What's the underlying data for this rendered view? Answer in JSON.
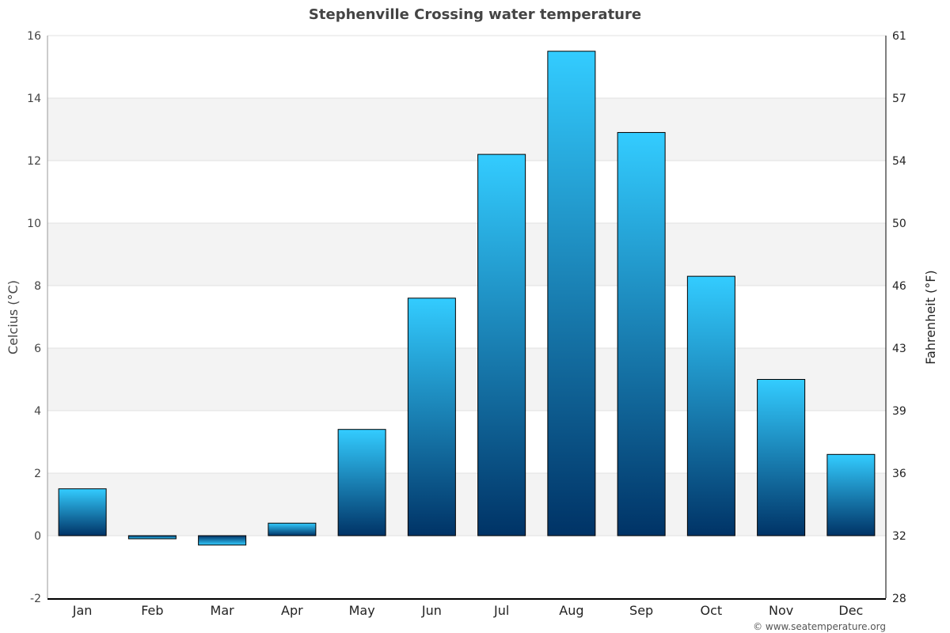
{
  "chart_data": {
    "type": "bar",
    "title": "Stephenville Crossing water temperature",
    "ylabel": "Celcius (°C)",
    "ylabel_right": "Fahrenheit (°F)",
    "xlabel": "",
    "categories": [
      "Jan",
      "Feb",
      "Mar",
      "Apr",
      "May",
      "Jun",
      "Jul",
      "Aug",
      "Sep",
      "Oct",
      "Nov",
      "Dec"
    ],
    "values": [
      1.5,
      -0.1,
      -0.3,
      0.4,
      3.4,
      7.6,
      12.2,
      15.5,
      12.9,
      8.3,
      5.0,
      2.6
    ],
    "ylim": [
      -2,
      16
    ],
    "yticks": [
      -2,
      0,
      2,
      4,
      6,
      8,
      10,
      12,
      14,
      16
    ],
    "yticks_right": [
      28,
      32,
      36,
      39,
      43,
      46,
      50,
      54,
      57,
      61
    ],
    "grid": true,
    "legend": "none",
    "bar_colors": {
      "top": "#33ccff",
      "bottom": "#003366"
    }
  },
  "credit": "© www.seatemperature.org"
}
